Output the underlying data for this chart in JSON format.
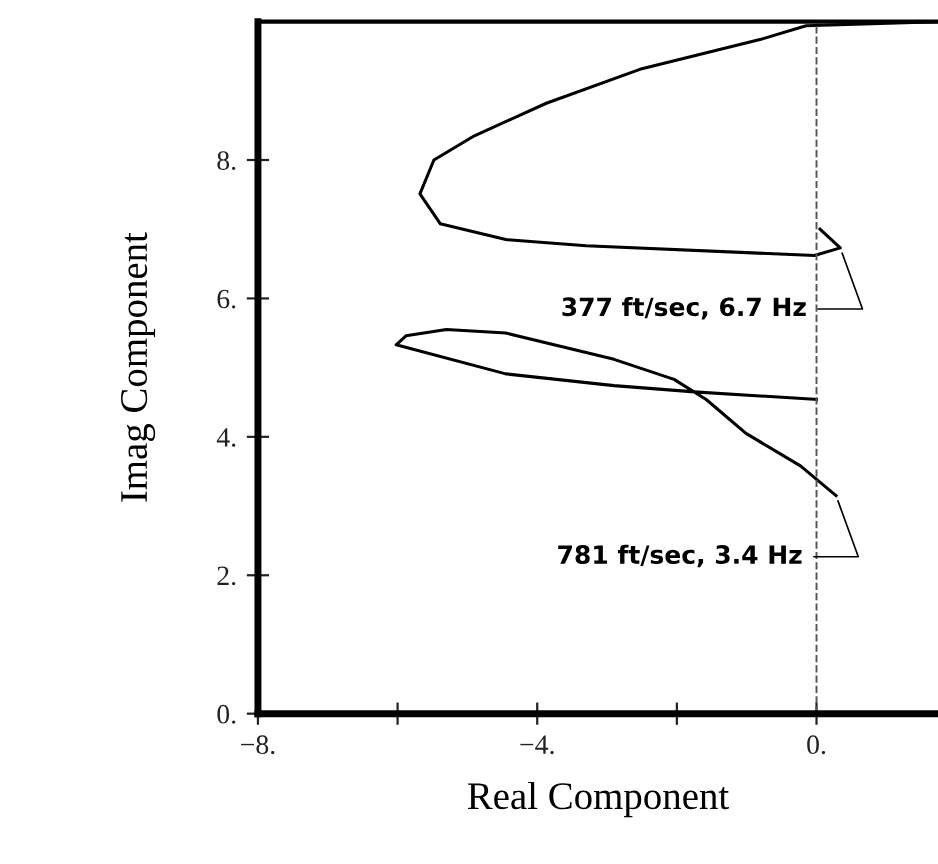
{
  "chart_data": {
    "type": "line",
    "xlabel": "Real Component",
    "ylabel": "Imag Component",
    "xlim": [
      -8,
      1.74
    ],
    "ylim": [
      0,
      10
    ],
    "xticks": [
      {
        "value": -8,
        "label": "−8."
      },
      {
        "value": -6,
        "label": null
      },
      {
        "value": -4,
        "label": "−4."
      },
      {
        "value": -2,
        "label": null
      },
      {
        "value": 0,
        "label": "0."
      }
    ],
    "yticks": [
      {
        "value": 0,
        "label": "0."
      },
      {
        "value": 2,
        "label": "2."
      },
      {
        "value": 4,
        "label": "4."
      },
      {
        "value": 6,
        "label": "6."
      },
      {
        "value": 8,
        "label": "8."
      }
    ],
    "grid": false,
    "legend": false,
    "marker": "none",
    "line_style": "solid",
    "series": [
      {
        "color": "#000000",
        "x": [
          0.05,
          0.34,
          -0.03,
          -3.3,
          -4.45,
          -5.39,
          -5.68,
          -5.48,
          -4.9,
          -3.87,
          -2.53,
          -0.81,
          -0.15,
          1.74
        ],
        "values": [
          7.0,
          6.73,
          6.62,
          6.76,
          6.85,
          7.08,
          7.51,
          8.0,
          8.35,
          8.82,
          9.31,
          9.74,
          9.94,
          10.0
        ]
      },
      {
        "color": "#000000",
        "x": [
          0.28,
          -0.23,
          -1.01,
          -1.58,
          -2.04,
          -2.9,
          -4.45,
          -5.3,
          -5.88,
          -6.02,
          -4.45,
          -2.9,
          -1.75,
          0.0
        ],
        "values": [
          3.15,
          3.58,
          4.05,
          4.54,
          4.83,
          5.12,
          5.5,
          5.55,
          5.46,
          5.33,
          4.91,
          4.74,
          4.65,
          4.54
        ]
      }
    ],
    "ref_lines": [
      {
        "axis": "x",
        "value": 0,
        "color": "#555555",
        "line_style": "dashed"
      }
    ],
    "annotations": [
      {
        "text": "377 ft/sec, 6.7 Hz",
        "x": 0.34,
        "y": 6.73
      },
      {
        "text": "781 ft/sec, 3.4 Hz",
        "x": 0.28,
        "y": 3.15
      }
    ]
  }
}
